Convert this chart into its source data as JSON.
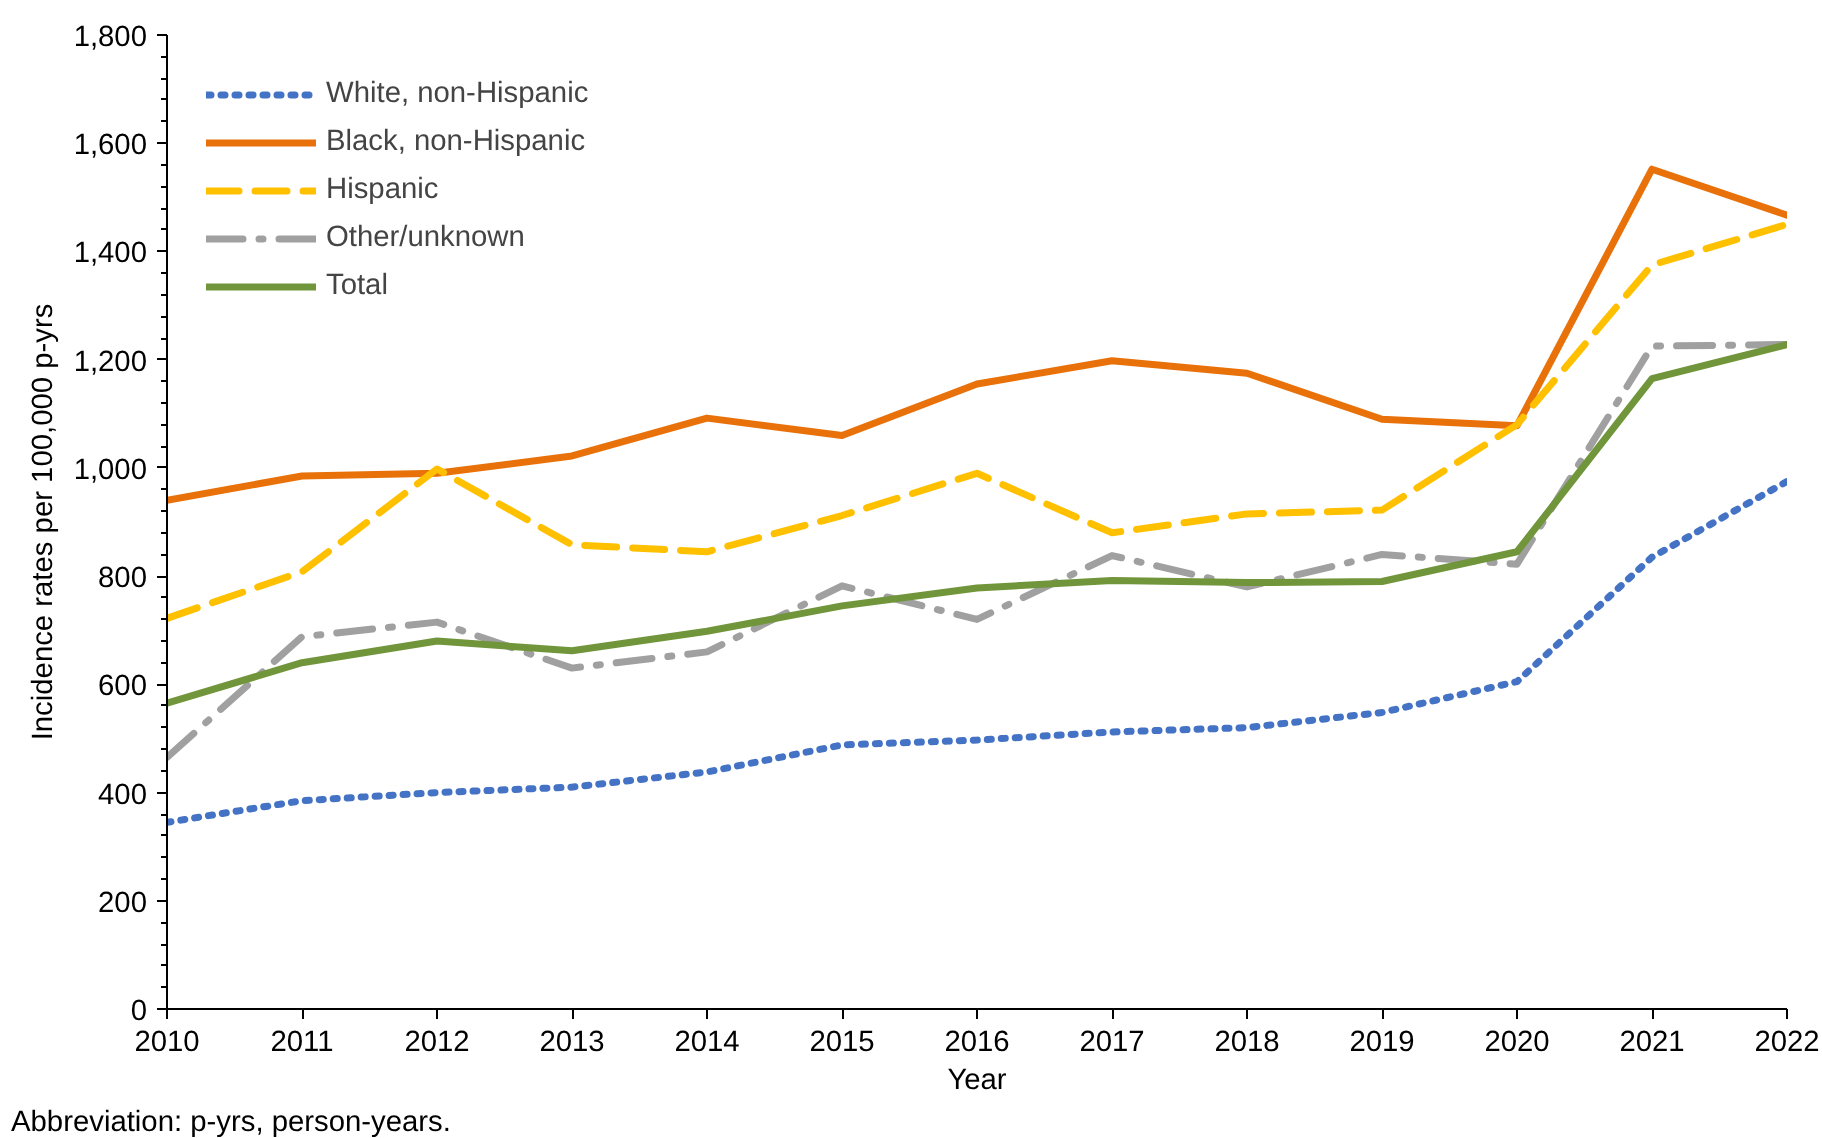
{
  "chart_data": {
    "type": "line",
    "xlabel": "Year",
    "ylabel": "Incidence rates per 100,000 p-yrs",
    "x": [
      2010,
      2011,
      2012,
      2013,
      2014,
      2015,
      2016,
      2017,
      2018,
      2019,
      2020,
      2021,
      2022
    ],
    "series": [
      {
        "name": "White, non-Hispanic",
        "color": "#4472c4",
        "line_style": "dotted",
        "values": [
          345,
          385,
          400,
          410,
          438,
          488,
          497,
          512,
          520,
          548,
          605,
          835,
          975
        ]
      },
      {
        "name": "Black, non-Hispanic",
        "color": "#e8710a",
        "line_style": "solid",
        "values": [
          940,
          985,
          990,
          1022,
          1092,
          1060,
          1155,
          1198,
          1175,
          1090,
          1078,
          1552,
          1467
        ]
      },
      {
        "name": "Hispanic",
        "color": "#ffc000",
        "line_style": "dashed",
        "values": [
          722,
          808,
          998,
          858,
          845,
          912,
          990,
          880,
          915,
          922,
          1080,
          1375,
          1450
        ]
      },
      {
        "name": "Other/unknown",
        "color": "#a0a0a0",
        "line_style": "dashdot",
        "values": [
          465,
          688,
          715,
          630,
          660,
          782,
          720,
          838,
          780,
          840,
          822,
          1225,
          1228
        ]
      },
      {
        "name": "Total",
        "color": "#70953a",
        "line_style": "solid",
        "values": [
          565,
          640,
          680,
          662,
          698,
          745,
          778,
          792,
          788,
          790,
          845,
          1165,
          1228
        ]
      }
    ],
    "xlim": [
      2010,
      2022
    ],
    "xticks": [
      2010,
      2011,
      2012,
      2013,
      2014,
      2015,
      2016,
      2017,
      2018,
      2019,
      2020,
      2021,
      2022
    ],
    "ylim": [
      0,
      1800
    ],
    "yticks": [
      {
        "value": 0,
        "label": "0"
      },
      {
        "value": 200,
        "label": "200"
      },
      {
        "value": 400,
        "label": "400"
      },
      {
        "value": 600,
        "label": "600"
      },
      {
        "value": 800,
        "label": "800"
      },
      {
        "value": 1000,
        "label": "1,000"
      },
      {
        "value": 1200,
        "label": "1,200"
      },
      {
        "value": 1400,
        "label": "1,400"
      },
      {
        "value": 1600,
        "label": "1,600"
      },
      {
        "value": 1800,
        "label": "1,800"
      }
    ],
    "grid": false,
    "legend": "top left",
    "marker": "none",
    "annotations": [
      "Abbreviation: p-yrs, person-years."
    ]
  }
}
